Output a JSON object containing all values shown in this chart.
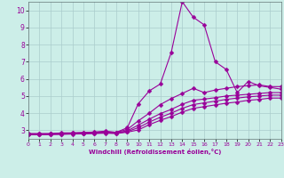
{
  "xlabel": "Windchill (Refroidissement éolien,°C)",
  "xlim": [
    0,
    23
  ],
  "ylim": [
    2.5,
    10.5
  ],
  "yticks": [
    3,
    4,
    5,
    6,
    7,
    8,
    9,
    10
  ],
  "xticks": [
    0,
    1,
    2,
    3,
    4,
    5,
    6,
    7,
    8,
    9,
    10,
    11,
    12,
    13,
    14,
    15,
    16,
    17,
    18,
    19,
    20,
    21,
    22,
    23
  ],
  "bg_color": "#cceee8",
  "grid_color": "#aacccc",
  "line_color": "#990099",
  "markersize": 2.5,
  "linewidth": 0.8,
  "lines": [
    [
      2.8,
      2.8,
      2.8,
      2.85,
      2.85,
      2.87,
      2.9,
      2.95,
      2.88,
      3.15,
      4.55,
      5.3,
      5.7,
      7.55,
      10.5,
      9.6,
      9.15,
      7.0,
      6.55,
      5.2,
      5.85,
      5.6,
      5.5,
      5.4
    ],
    [
      2.8,
      2.8,
      2.8,
      2.82,
      2.84,
      2.86,
      2.88,
      2.9,
      2.88,
      3.05,
      3.55,
      4.0,
      4.5,
      4.85,
      5.15,
      5.45,
      5.2,
      5.35,
      5.45,
      5.55,
      5.6,
      5.65,
      5.55,
      5.55
    ],
    [
      2.78,
      2.78,
      2.79,
      2.8,
      2.82,
      2.83,
      2.85,
      2.87,
      2.85,
      2.97,
      3.3,
      3.65,
      3.97,
      4.22,
      4.52,
      4.75,
      4.82,
      4.9,
      5.0,
      5.05,
      5.1,
      5.15,
      5.2,
      5.2
    ],
    [
      2.76,
      2.76,
      2.77,
      2.78,
      2.8,
      2.81,
      2.83,
      2.85,
      2.83,
      2.93,
      3.15,
      3.48,
      3.76,
      4.0,
      4.28,
      4.5,
      4.6,
      4.7,
      4.8,
      4.88,
      4.95,
      5.0,
      5.05,
      5.05
    ],
    [
      2.74,
      2.74,
      2.75,
      2.76,
      2.78,
      2.79,
      2.81,
      2.83,
      2.81,
      2.89,
      3.02,
      3.33,
      3.58,
      3.8,
      4.06,
      4.28,
      4.38,
      4.48,
      4.58,
      4.65,
      4.75,
      4.8,
      4.88,
      4.88
    ]
  ]
}
